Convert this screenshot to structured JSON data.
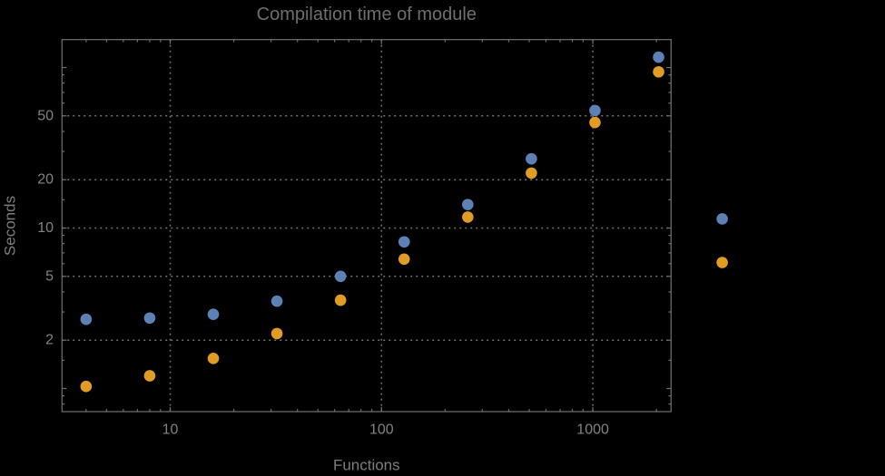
{
  "page": {
    "background": "#000000"
  },
  "chart_data": {
    "type": "scatter",
    "title": "Compilation time of module",
    "xlabel": "Functions",
    "ylabel": "Seconds",
    "x_scale": "log",
    "y_scale": "log",
    "legend": "none",
    "grid": "dotted lines at labeled major ticks",
    "x": [
      4,
      8,
      16,
      32,
      64,
      128,
      256,
      512,
      1024,
      2048,
      4096
    ],
    "series": [
      {
        "name": "series-1-blue",
        "color": "#5e81b5",
        "values": [
          2.7,
          2.75,
          2.9,
          3.5,
          5.0,
          8.2,
          14,
          27,
          54,
          116,
          11.4
        ]
      },
      {
        "name": "series-2-orange",
        "color": "#e19c24",
        "values": [
          1.03,
          1.2,
          1.54,
          2.2,
          3.55,
          6.4,
          11.7,
          22,
          45.5,
          94,
          6.1
        ]
      }
    ],
    "x_axis": {
      "labeled_ticks": [
        10,
        100,
        1000
      ],
      "minor_ticks": [
        4,
        5,
        6,
        7,
        8,
        9,
        20,
        30,
        40,
        50,
        60,
        70,
        80,
        90,
        200,
        300,
        400,
        500,
        600,
        700,
        800,
        900,
        2000
      ],
      "gridlines": [
        10,
        100,
        1000
      ],
      "range": [
        3.1,
        2350
      ]
    },
    "y_axis": {
      "labeled_ticks": [
        2,
        5,
        10,
        20,
        50
      ],
      "unlabeled_major_ticks": [
        1,
        100
      ],
      "minor_ticks": [
        0.8,
        0.9,
        1.5,
        3,
        4,
        6,
        7,
        8,
        9,
        15,
        30,
        40,
        60,
        70,
        80,
        90
      ],
      "gridlines": [
        2,
        5,
        10,
        20,
        50
      ],
      "range": [
        0.72,
        149
      ]
    },
    "annotations": "last x value pair (4096 functions) is drawn outside the right frame edge",
    "colors": {
      "background": "#000000",
      "frame": "#707070",
      "grid": "#757575",
      "tick_label": "#828282",
      "axis_label": "#7d7d7d",
      "title": "#6e6e6e"
    }
  }
}
